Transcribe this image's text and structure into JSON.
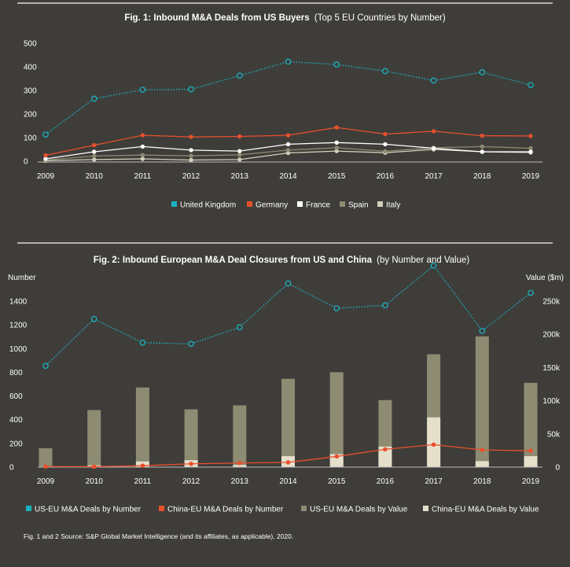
{
  "colors": {
    "background": "#3f3d3a",
    "uk": "#1ab1be",
    "germany": "#e8502d",
    "france": "#ffffff",
    "spain": "#8e8b73",
    "italy": "#d4cfba",
    "us_eu_value": "#8e8b73",
    "china_eu_value": "#e5e0cc",
    "rule": "#d8d8d8"
  },
  "source_note": "Fig. 1 and 2 Source: S&P Global Market Intelligence (and its affiliates, as applicable), 2020.",
  "chart_data": [
    {
      "type": "line",
      "title_bold": "Fig. 1: Inbound M&A Deals from US Buyers",
      "title_rest": "(Top 5 EU Countries by Number)",
      "x": [
        "2009",
        "2010",
        "2011",
        "2012",
        "2013",
        "2014",
        "2015",
        "2016",
        "2017",
        "2018",
        "2019"
      ],
      "ylim": [
        0,
        500
      ],
      "yticks": [
        "500",
        "400",
        "300",
        "200",
        "100",
        "0"
      ],
      "grid": false,
      "legend_position": "bottom",
      "series": [
        {
          "name": "United Kingdom",
          "values": [
            113,
            265,
            303,
            305,
            363,
            422,
            410,
            382,
            342,
            377,
            323
          ]
        },
        {
          "name": "Germany",
          "values": [
            25,
            68,
            110,
            103,
            105,
            110,
            143,
            115,
            127,
            108,
            107
          ]
        },
        {
          "name": "France",
          "values": [
            10,
            40,
            62,
            47,
            43,
            72,
            79,
            72,
            55,
            40,
            40
          ]
        },
        {
          "name": "Spain",
          "values": [
            5,
            22,
            26,
            23,
            27,
            47,
            57,
            42,
            57,
            62,
            55
          ]
        },
        {
          "name": "Italy",
          "values": [
            2,
            7,
            10,
            5,
            7,
            35,
            43,
            36,
            50,
            40,
            37
          ]
        }
      ]
    },
    {
      "type": "bar",
      "title_bold": "Fig. 2: Inbound European M&A Deal Closures from US and China",
      "title_rest": "(by Number and Value)",
      "ylabel_left": "Number",
      "ylabel_right": "Value ($m)",
      "x": [
        "2009",
        "2010",
        "2011",
        "2012",
        "2013",
        "2014",
        "2015",
        "2016",
        "2017",
        "2018",
        "2019"
      ],
      "ylim_left": [
        0,
        1400
      ],
      "ylim_right": [
        0,
        250000
      ],
      "yticks_left": [
        "1400",
        "1200",
        "1000",
        "800",
        "600",
        "400",
        "200",
        "0"
      ],
      "yticks_right": [
        "250k",
        "200k",
        "150k",
        "100k",
        "50k",
        "0"
      ],
      "grid": false,
      "legend_position": "bottom",
      "series": [
        {
          "name": "US-EU M&A Deals by Number",
          "kind": "line",
          "axis": "left",
          "values": [
            855,
            1250,
            1050,
            1040,
            1180,
            1550,
            1340,
            1365,
            1700,
            1150,
            1470
          ]
        },
        {
          "name": "China-EU M&A Deals by Number",
          "kind": "line",
          "axis": "left",
          "values": [
            5,
            4,
            12,
            28,
            35,
            40,
            90,
            150,
            190,
            145,
            138
          ]
        },
        {
          "name": "US-EU M&A Deals by Value",
          "kind": "bar",
          "axis": "right",
          "values": [
            28500,
            86000,
            120000,
            87000,
            93000,
            133000,
            143000,
            101000,
            170000,
            197000,
            127000
          ]
        },
        {
          "name": "China-EU M&A Deals by Value",
          "kind": "bar",
          "axis": "right",
          "values": [
            400,
            2800,
            8500,
            10500,
            3200,
            16500,
            19500,
            31000,
            75000,
            9000,
            16500
          ]
        }
      ]
    }
  ]
}
